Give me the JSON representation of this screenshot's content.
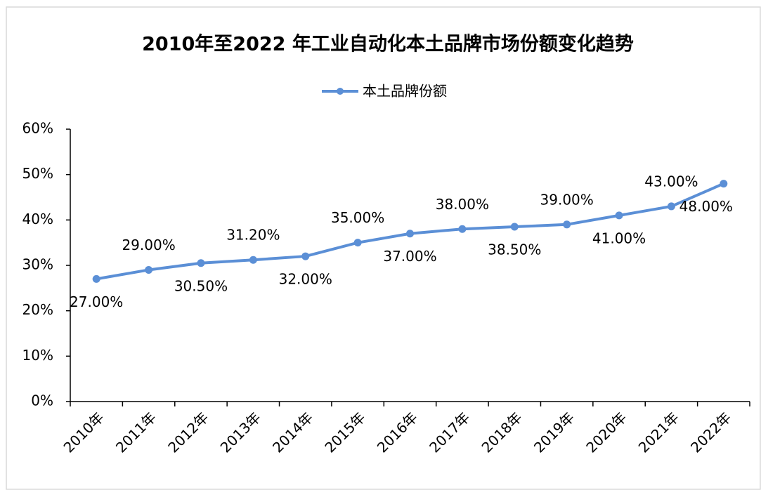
{
  "chart_data": {
    "type": "line",
    "title": "2010年至2022 年工业自动化本土品牌市场份额变化趋势",
    "categories": [
      "2010年",
      "2011年",
      "2012年",
      "2013年",
      "2014年",
      "2015年",
      "2016年",
      "2017年",
      "2018年",
      "2019年",
      "2020年",
      "2021年",
      "2022年"
    ],
    "series": [
      {
        "name": "本土品牌份额",
        "color": "#5b8fd6",
        "values": [
          27,
          29,
          30.5,
          31.2,
          32,
          35,
          37,
          38,
          38.5,
          39,
          41,
          43,
          48
        ],
        "value_labels": [
          "27.00%",
          "29.00%",
          "30.50%",
          "31.20%",
          "32.00%",
          "35.00%",
          "37.00%",
          "38.00%",
          "38.50%",
          "39.00%",
          "41.00%",
          "43.00%",
          "48.00%"
        ]
      }
    ],
    "ylim": [
      0,
      60
    ],
    "yticks": [
      {
        "value": 0,
        "label": "0%"
      },
      {
        "value": 10,
        "label": "10%"
      },
      {
        "value": 20,
        "label": "20%"
      },
      {
        "value": 30,
        "label": "30%"
      },
      {
        "value": 40,
        "label": "40%"
      },
      {
        "value": 50,
        "label": "50%"
      },
      {
        "value": 60,
        "label": "60%"
      }
    ],
    "legend": "top"
  }
}
